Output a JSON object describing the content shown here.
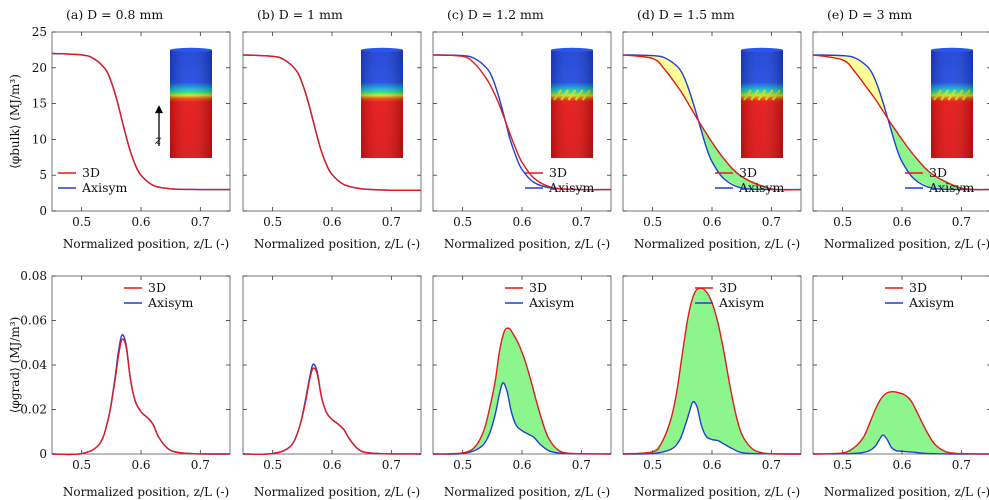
{
  "figure": {
    "x_label": "Normalized position, z/L  (-)",
    "top_ylabel": "⟨φbulk⟩ (MJ/m³)",
    "bottom_ylabel": "⟨φgrad⟩ (MJ/m³)",
    "legend": [
      "3D",
      "Axisym"
    ],
    "inset_axis_label": "z",
    "colors": {
      "3D": "#e31a1c",
      "Axisym": "#1f3fd6",
      "fill_yellow": "#ffff99",
      "fill_green": "#8cf58c"
    }
  },
  "chart_data": [
    {
      "id": "a_bulk",
      "title": "(a) D = 0.8 mm",
      "type": "line",
      "xlabel": "Normalized position, z/L  (-)",
      "ylabel": "⟨φbulk⟩ (MJ/m³)",
      "xlim": [
        0.45,
        0.75
      ],
      "ylim": [
        0,
        25
      ],
      "xticks": [
        0.5,
        0.6,
        0.7
      ],
      "yticks": [
        0,
        5,
        10,
        15,
        20,
        25
      ],
      "legend": "bottom-left",
      "series": [
        {
          "name": "3D",
          "x": [
            0.45,
            0.5,
            0.52,
            0.54,
            0.55,
            0.56,
            0.57,
            0.58,
            0.59,
            0.6,
            0.62,
            0.65,
            0.7,
            0.75
          ],
          "y": [
            22,
            21.8,
            21.3,
            19.8,
            18.0,
            15.3,
            12.0,
            8.9,
            6.5,
            5.0,
            3.6,
            3.1,
            3.0,
            3.0
          ]
        },
        {
          "name": "Axisym",
          "x": [
            0.45,
            0.5,
            0.52,
            0.54,
            0.55,
            0.56,
            0.57,
            0.58,
            0.59,
            0.6,
            0.62,
            0.65,
            0.7,
            0.75
          ],
          "y": [
            22,
            21.8,
            21.3,
            19.8,
            18.0,
            15.3,
            12.0,
            8.9,
            6.5,
            5.0,
            3.6,
            3.1,
            3.0,
            3.0
          ]
        }
      ]
    },
    {
      "id": "b_bulk",
      "title": "(b) D = 1 mm",
      "type": "line",
      "xlabel": "Normalized position, z/L  (-)",
      "xlim": [
        0.45,
        0.75
      ],
      "ylim": [
        0,
        25
      ],
      "xticks": [
        0.5,
        0.6,
        0.7
      ],
      "yticks": [
        0,
        5,
        10,
        15,
        20,
        25
      ],
      "series": [
        {
          "name": "3D",
          "x": [
            0.45,
            0.5,
            0.52,
            0.54,
            0.55,
            0.56,
            0.57,
            0.58,
            0.59,
            0.6,
            0.62,
            0.65,
            0.7,
            0.75
          ],
          "y": [
            21.8,
            21.6,
            21.1,
            19.6,
            17.8,
            15.2,
            12.0,
            8.9,
            6.6,
            5.1,
            3.7,
            3.1,
            2.9,
            2.9
          ]
        },
        {
          "name": "Axisym",
          "x": [
            0.45,
            0.5,
            0.52,
            0.54,
            0.55,
            0.56,
            0.57,
            0.58,
            0.59,
            0.6,
            0.62,
            0.65,
            0.7,
            0.75
          ],
          "y": [
            21.8,
            21.6,
            21.1,
            19.6,
            17.8,
            15.2,
            12.0,
            8.9,
            6.6,
            5.1,
            3.7,
            3.1,
            2.9,
            2.9
          ]
        }
      ]
    },
    {
      "id": "c_bulk",
      "title": "(c) D = 1.2 mm",
      "type": "line",
      "xlabel": "Normalized position, z/L  (-)",
      "xlim": [
        0.45,
        0.75
      ],
      "ylim": [
        0,
        25
      ],
      "xticks": [
        0.5,
        0.6,
        0.7
      ],
      "yticks": [
        0,
        5,
        10,
        15,
        20,
        25
      ],
      "legend": "bottom-right",
      "series": [
        {
          "name": "3D",
          "x": [
            0.45,
            0.5,
            0.52,
            0.54,
            0.55,
            0.56,
            0.57,
            0.58,
            0.59,
            0.6,
            0.62,
            0.65,
            0.7,
            0.75
          ],
          "y": [
            21.8,
            21.6,
            20.6,
            18.5,
            17.0,
            15.2,
            13.0,
            10.7,
            8.6,
            6.8,
            4.6,
            3.3,
            3.0,
            3.0
          ]
        },
        {
          "name": "Axisym",
          "x": [
            0.45,
            0.5,
            0.52,
            0.54,
            0.55,
            0.56,
            0.57,
            0.58,
            0.59,
            0.6,
            0.62,
            0.65,
            0.7,
            0.75
          ],
          "y": [
            21.8,
            21.7,
            21.3,
            20.0,
            18.6,
            16.2,
            13.2,
            10.0,
            7.6,
            5.8,
            4.0,
            3.2,
            3.0,
            3.0
          ]
        }
      ]
    },
    {
      "id": "d_bulk",
      "title": "(d) D = 1.5 mm",
      "type": "line",
      "xlabel": "Normalized position, z/L  (-)",
      "xlim": [
        0.45,
        0.75
      ],
      "ylim": [
        0,
        25
      ],
      "xticks": [
        0.5,
        0.6,
        0.7
      ],
      "yticks": [
        0,
        5,
        10,
        15,
        20,
        25
      ],
      "legend": "bottom-right",
      "series": [
        {
          "name": "3D",
          "x": [
            0.45,
            0.5,
            0.52,
            0.54,
            0.55,
            0.56,
            0.57,
            0.58,
            0.59,
            0.6,
            0.62,
            0.65,
            0.7,
            0.75
          ],
          "y": [
            21.8,
            21.3,
            19.8,
            17.6,
            16.4,
            15.0,
            13.6,
            12.2,
            10.9,
            9.6,
            7.3,
            4.8,
            3.1,
            3.0
          ]
        },
        {
          "name": "Axisym",
          "x": [
            0.45,
            0.5,
            0.52,
            0.54,
            0.55,
            0.56,
            0.57,
            0.58,
            0.59,
            0.6,
            0.62,
            0.65,
            0.7,
            0.75
          ],
          "y": [
            21.8,
            21.7,
            21.4,
            20.3,
            19.2,
            17.2,
            14.6,
            11.8,
            9.0,
            6.9,
            4.5,
            3.2,
            3.0,
            3.0
          ]
        }
      ]
    },
    {
      "id": "e_bulk",
      "title": "(e) D = 3 mm",
      "type": "line",
      "xlabel": "Normalized position, z/L  (-)",
      "xlim": [
        0.45,
        0.75
      ],
      "ylim": [
        0,
        25
      ],
      "xticks": [
        0.5,
        0.6,
        0.7
      ],
      "yticks": [
        0,
        5,
        10,
        15,
        20,
        25
      ],
      "legend": "bottom-right",
      "series": [
        {
          "name": "3D",
          "x": [
            0.45,
            0.5,
            0.52,
            0.54,
            0.55,
            0.56,
            0.57,
            0.58,
            0.59,
            0.6,
            0.62,
            0.65,
            0.7,
            0.75
          ],
          "y": [
            21.8,
            21.1,
            19.5,
            17.3,
            16.2,
            15.0,
            13.7,
            12.4,
            11.2,
            10.0,
            7.8,
            5.2,
            3.2,
            3.0
          ]
        },
        {
          "name": "Axisym",
          "x": [
            0.45,
            0.5,
            0.52,
            0.54,
            0.55,
            0.56,
            0.57,
            0.58,
            0.59,
            0.6,
            0.62,
            0.65,
            0.7,
            0.75
          ],
          "y": [
            21.8,
            21.7,
            21.4,
            20.3,
            19.2,
            17.2,
            14.6,
            11.8,
            9.0,
            6.9,
            4.5,
            3.2,
            3.0,
            3.0
          ]
        }
      ]
    },
    {
      "id": "a_grad",
      "type": "line",
      "xlabel": "Normalized position, z/L  (-)",
      "ylabel": "⟨φgrad⟩ (MJ/m³)",
      "xlim": [
        0.45,
        0.75
      ],
      "ylim": [
        0,
        0.08
      ],
      "xticks": [
        0.5,
        0.6,
        0.7
      ],
      "yticks": [
        0,
        0.02,
        0.04,
        0.06,
        0.08
      ],
      "legend": "top-right",
      "series": [
        {
          "name": "3D",
          "x": [
            0.45,
            0.5,
            0.53,
            0.545,
            0.555,
            0.562,
            0.568,
            0.575,
            0.582,
            0.59,
            0.6,
            0.61,
            0.62,
            0.63,
            0.645,
            0.66,
            0.69,
            0.75
          ],
          "y": [
            0,
            0.0002,
            0.0045,
            0.016,
            0.031,
            0.044,
            0.0515,
            0.048,
            0.034,
            0.024,
            0.019,
            0.0165,
            0.0135,
            0.0075,
            0.0025,
            0.0008,
            0.0001,
            0
          ]
        },
        {
          "name": "Axisym",
          "x": [
            0.45,
            0.5,
            0.53,
            0.545,
            0.555,
            0.562,
            0.568,
            0.575,
            0.582,
            0.59,
            0.6,
            0.61,
            0.62,
            0.63,
            0.645,
            0.66,
            0.69,
            0.75
          ],
          "y": [
            0,
            0.0002,
            0.0045,
            0.016,
            0.032,
            0.046,
            0.0535,
            0.049,
            0.034,
            0.024,
            0.019,
            0.0165,
            0.0135,
            0.0075,
            0.0025,
            0.0008,
            0.0001,
            0
          ]
        }
      ]
    },
    {
      "id": "b_grad",
      "type": "line",
      "xlabel": "Normalized position, z/L  (-)",
      "xlim": [
        0.45,
        0.75
      ],
      "ylim": [
        0,
        0.08
      ],
      "xticks": [
        0.5,
        0.6,
        0.7
      ],
      "yticks": [
        0,
        0.02,
        0.04,
        0.06,
        0.08
      ],
      "series": [
        {
          "name": "3D",
          "x": [
            0.45,
            0.5,
            0.53,
            0.545,
            0.555,
            0.562,
            0.568,
            0.575,
            0.582,
            0.59,
            0.6,
            0.61,
            0.62,
            0.63,
            0.645,
            0.66,
            0.69,
            0.75
          ],
          "y": [
            0,
            0.0002,
            0.0035,
            0.012,
            0.023,
            0.033,
            0.0385,
            0.036,
            0.026,
            0.019,
            0.0155,
            0.0135,
            0.011,
            0.0065,
            0.002,
            0.0006,
            0.0001,
            0
          ]
        },
        {
          "name": "Axisym",
          "x": [
            0.45,
            0.5,
            0.53,
            0.545,
            0.555,
            0.562,
            0.568,
            0.575,
            0.582,
            0.59,
            0.6,
            0.61,
            0.62,
            0.63,
            0.645,
            0.66,
            0.69,
            0.75
          ],
          "y": [
            0,
            0.0002,
            0.0035,
            0.012,
            0.024,
            0.034,
            0.0403,
            0.037,
            0.026,
            0.019,
            0.0155,
            0.0135,
            0.011,
            0.0065,
            0.002,
            0.0006,
            0.0001,
            0
          ]
        }
      ]
    },
    {
      "id": "c_grad",
      "type": "line",
      "xlabel": "Normalized position, z/L  (-)",
      "xlim": [
        0.45,
        0.75
      ],
      "ylim": [
        0,
        0.08
      ],
      "xticks": [
        0.5,
        0.6,
        0.7
      ],
      "yticks": [
        0,
        0.02,
        0.04,
        0.06,
        0.08
      ],
      "legend": "top-right",
      "series": [
        {
          "name": "3D",
          "x": [
            0.45,
            0.5,
            0.52,
            0.535,
            0.545,
            0.555,
            0.562,
            0.57,
            0.578,
            0.585,
            0.595,
            0.605,
            0.615,
            0.625,
            0.635,
            0.645,
            0.66,
            0.68,
            0.75
          ],
          "y": [
            0,
            0.0005,
            0.003,
            0.01,
            0.02,
            0.033,
            0.046,
            0.055,
            0.0565,
            0.054,
            0.049,
            0.042,
            0.033,
            0.023,
            0.014,
            0.007,
            0.002,
            0.0003,
            0
          ]
        },
        {
          "name": "Axisym",
          "x": [
            0.45,
            0.5,
            0.53,
            0.545,
            0.555,
            0.562,
            0.568,
            0.575,
            0.582,
            0.59,
            0.6,
            0.61,
            0.62,
            0.63,
            0.645,
            0.66,
            0.69,
            0.75
          ],
          "y": [
            0,
            0.0002,
            0.003,
            0.009,
            0.018,
            0.027,
            0.032,
            0.028,
            0.019,
            0.013,
            0.0105,
            0.009,
            0.0075,
            0.0045,
            0.0015,
            0.0005,
            0.0001,
            0
          ]
        }
      ]
    },
    {
      "id": "d_grad",
      "type": "line",
      "xlabel": "Normalized position, z/L  (-)",
      "xlim": [
        0.45,
        0.75
      ],
      "ylim": [
        0,
        0.08
      ],
      "xticks": [
        0.5,
        0.6,
        0.7
      ],
      "yticks": [
        0,
        0.02,
        0.04,
        0.06,
        0.08
      ],
      "legend": "top-right",
      "series": [
        {
          "name": "3D",
          "x": [
            0.45,
            0.5,
            0.515,
            0.53,
            0.54,
            0.55,
            0.56,
            0.57,
            0.58,
            0.59,
            0.6,
            0.61,
            0.62,
            0.63,
            0.64,
            0.65,
            0.665,
            0.68,
            0.7,
            0.75
          ],
          "y": [
            0,
            0.001,
            0.005,
            0.015,
            0.027,
            0.045,
            0.062,
            0.072,
            0.0745,
            0.073,
            0.068,
            0.059,
            0.046,
            0.031,
            0.018,
            0.009,
            0.003,
            0.0008,
            0.0001,
            0
          ]
        },
        {
          "name": "Axisym",
          "x": [
            0.45,
            0.5,
            0.53,
            0.545,
            0.555,
            0.562,
            0.568,
            0.575,
            0.582,
            0.59,
            0.6,
            0.61,
            0.62,
            0.63,
            0.645,
            0.66,
            0.69,
            0.75
          ],
          "y": [
            0,
            0.0002,
            0.002,
            0.006,
            0.013,
            0.019,
            0.0235,
            0.021,
            0.013,
            0.008,
            0.0065,
            0.006,
            0.0045,
            0.003,
            0.001,
            0.0003,
            0.0001,
            0
          ]
        }
      ]
    },
    {
      "id": "e_grad",
      "type": "line",
      "xlabel": "Normalized position, z/L  (-)",
      "xlim": [
        0.45,
        0.75
      ],
      "ylim": [
        0,
        0.08
      ],
      "xticks": [
        0.5,
        0.6,
        0.7
      ],
      "yticks": [
        0,
        0.02,
        0.04,
        0.06,
        0.08
      ],
      "legend": "top-right",
      "series": [
        {
          "name": "3D",
          "x": [
            0.45,
            0.5,
            0.52,
            0.535,
            0.545,
            0.555,
            0.565,
            0.575,
            0.585,
            0.595,
            0.605,
            0.615,
            0.625,
            0.635,
            0.645,
            0.655,
            0.67,
            0.69,
            0.75
          ],
          "y": [
            0,
            0.0005,
            0.003,
            0.0075,
            0.0135,
            0.02,
            0.025,
            0.0275,
            0.028,
            0.0275,
            0.0265,
            0.024,
            0.019,
            0.0135,
            0.0085,
            0.0045,
            0.0015,
            0.0003,
            0
          ]
        },
        {
          "name": "Axisym",
          "x": [
            0.45,
            0.5,
            0.53,
            0.545,
            0.555,
            0.562,
            0.568,
            0.575,
            0.582,
            0.59,
            0.6,
            0.61,
            0.62,
            0.63,
            0.645,
            0.66,
            0.69,
            0.75
          ],
          "y": [
            0,
            0.0001,
            0.0005,
            0.0015,
            0.0035,
            0.0065,
            0.0085,
            0.0065,
            0.003,
            0.0015,
            0.0012,
            0.001,
            0.0008,
            0.0005,
            0.0002,
            0.0001,
            0,
            0
          ]
        }
      ]
    }
  ]
}
